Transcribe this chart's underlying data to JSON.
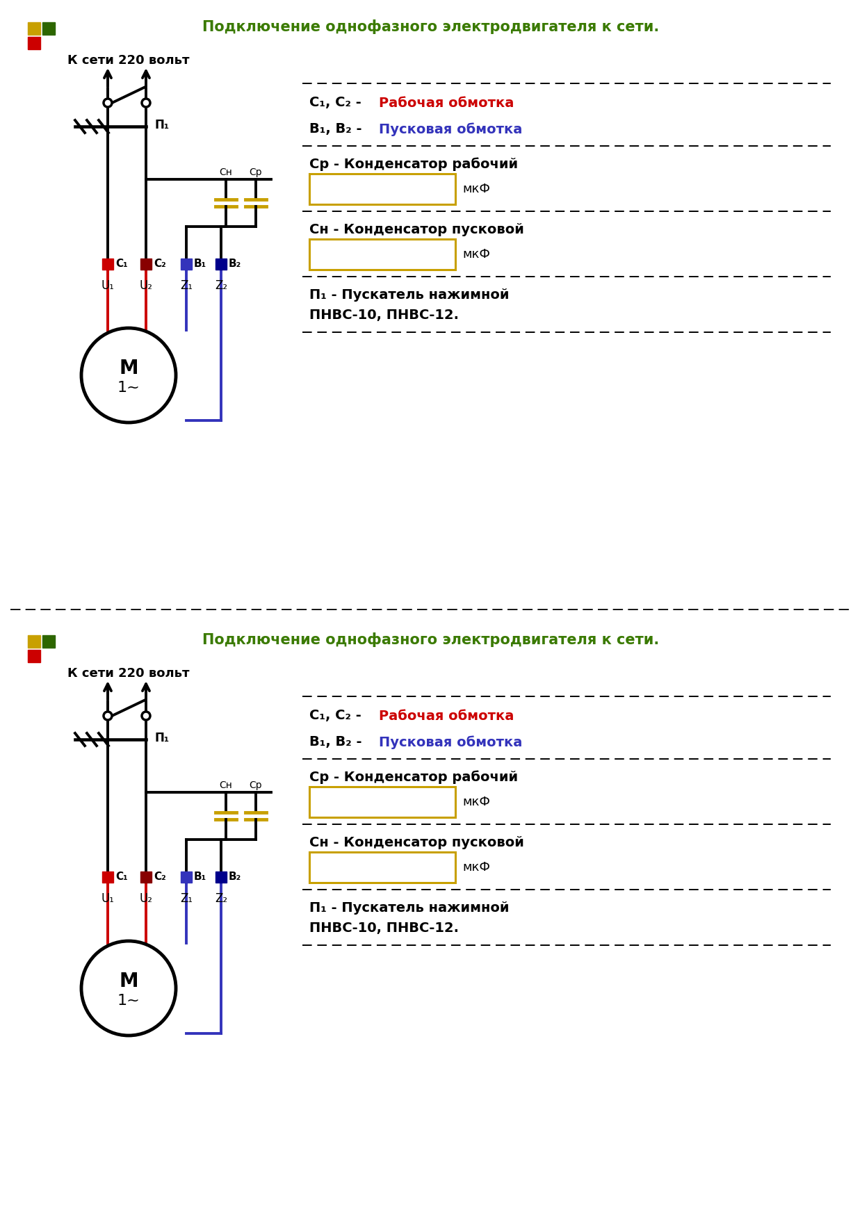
{
  "title": "Подключение однофазного электродвигателя к сети.",
  "supply_label": "К сети 220 вольт",
  "legend_c12_red": "Рабочая обмотка",
  "legend_b12_blue": "Пусковая обмотка",
  "legend_cp_line": "Ср - Конденсатор рабочий",
  "legend_cn_line": "Сн - Конденсатор пусковой",
  "legend_mkf": "мкФ",
  "legend_p1_line1": "П₁ - Пускатель нажимной",
  "legend_p1_line2": "ПНВС-10, ПНВС-12.",
  "color_red": "#cc0000",
  "color_blue": "#3333bb",
  "color_black": "#000000",
  "color_green_title": "#3a7a00",
  "color_sq_yellow": "#c8a000",
  "color_sq_red": "#cc0000",
  "color_sq_darkgreen": "#2d6600",
  "background": "#ffffff"
}
